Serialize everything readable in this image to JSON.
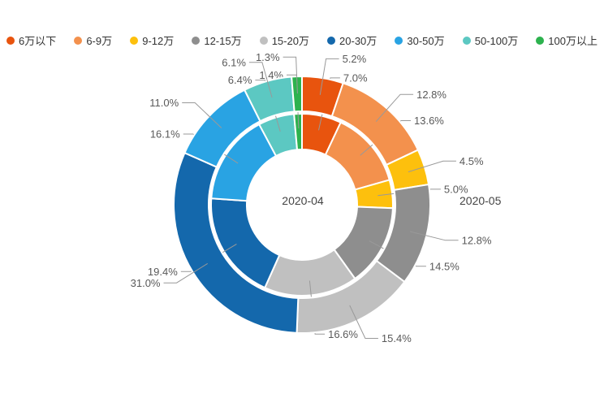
{
  "chart_data": {
    "type": "pie",
    "subtype": "nested-donut",
    "title": "",
    "legend_position": "top",
    "value_suffix": "%",
    "start_angle_deg": -90,
    "direction": "clockwise",
    "categories": [
      "6万以下",
      "6-9万",
      "9-12万",
      "12-15万",
      "15-20万",
      "20-30万",
      "30-50万",
      "50-100万",
      "100万以上"
    ],
    "colors": [
      "#E8540E",
      "#F3914D",
      "#FDC00D",
      "#8E8E8E",
      "#C0C0C0",
      "#1468AC",
      "#29A3E3",
      "#5CC8C2",
      "#2DB24E"
    ],
    "series": [
      {
        "name": "2020-04",
        "ring": "inner",
        "values": [
          7.0,
          13.6,
          5.0,
          14.5,
          16.6,
          19.4,
          16.1,
          6.4,
          1.4
        ]
      },
      {
        "name": "2020-05",
        "ring": "outer",
        "values": [
          5.2,
          12.8,
          4.5,
          12.8,
          15.4,
          31.0,
          11.0,
          6.1,
          1.3
        ]
      }
    ],
    "label_color": "#595959",
    "leader_line_color": "#999999"
  }
}
